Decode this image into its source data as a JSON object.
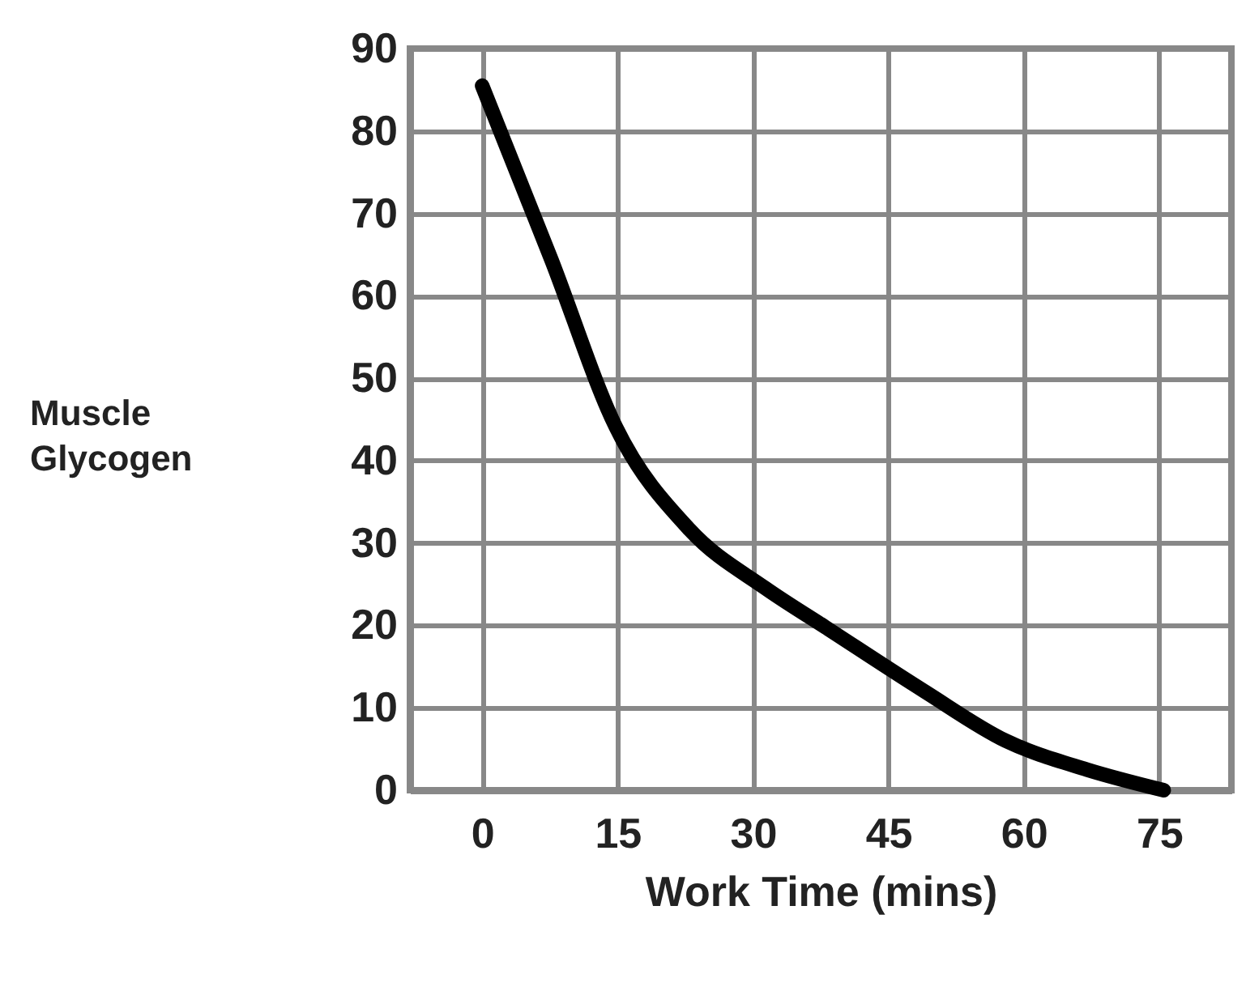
{
  "chart_data": {
    "type": "line",
    "xlabel": "Work Time (mins)",
    "ylabel": "Muscle Glycogen",
    "x": [
      0,
      7.7,
      14.8,
      23,
      31.4,
      38,
      49,
      58,
      67,
      75.5
    ],
    "series": [
      {
        "color": "#000000",
        "values": [
          85.5,
          64.3,
          44.1,
          31.6,
          24.5,
          19.8,
          12,
          6,
          2.5,
          0
        ]
      }
    ],
    "xlim": [
      -8,
      83
    ],
    "xticks": [
      0,
      15,
      30,
      45,
      60,
      75
    ],
    "ylim": [
      0,
      90
    ],
    "yticks": [
      0,
      10,
      20,
      30,
      40,
      50,
      60,
      70,
      80,
      90
    ],
    "grid": true,
    "legend": false,
    "line_style": "solid"
  }
}
